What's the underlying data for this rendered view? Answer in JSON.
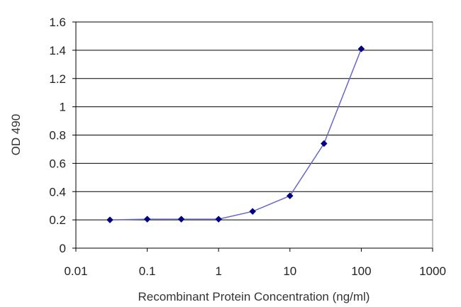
{
  "chart_data": {
    "type": "line",
    "title": "",
    "xlabel": "Recombinant Protein Concentration (ng/ml)",
    "ylabel": "OD 490",
    "x_scale": "log",
    "xlim": [
      0.01,
      1000
    ],
    "ylim": [
      0,
      1.6
    ],
    "x_ticks": [
      "0.01",
      "0.1",
      "1",
      "10",
      "100",
      "1000"
    ],
    "y_ticks": [
      "0",
      "0.2",
      "0.4",
      "0.6",
      "0.8",
      "1",
      "1.2",
      "1.4",
      "1.6"
    ],
    "grid": "horizontal",
    "legend": "none",
    "series": [
      {
        "x": [
          0.03,
          0.1,
          0.3,
          1,
          3,
          10,
          30,
          100
        ],
        "y": [
          0.2,
          0.205,
          0.205,
          0.205,
          0.26,
          0.37,
          0.74,
          1.41
        ],
        "color": "#000080",
        "line_color": "#6666cc",
        "marker": "diamond"
      }
    ],
    "colors": {
      "plot_border": "#808080",
      "gridline": "#000000",
      "axis": "#000000"
    }
  }
}
